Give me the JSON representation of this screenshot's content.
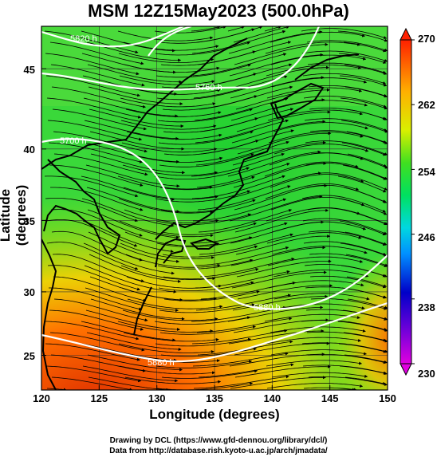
{
  "title": "MSM 12Z15May2023 (500.0hPa)",
  "x_axis": {
    "label": "Longitude (degrees)",
    "range": [
      120,
      150
    ],
    "ticks": [
      "120",
      "125",
      "130",
      "135",
      "140",
      "145",
      "150"
    ]
  },
  "y_axis": {
    "label": "Latitude  (degrees)",
    "range": [
      22.4,
      47.6
    ],
    "ticks": [
      "25",
      "30",
      "35",
      "40",
      "45"
    ]
  },
  "colorbar": {
    "min": 230,
    "max": 270,
    "ticks": [
      "230",
      "238",
      "246",
      "254",
      "262",
      "270"
    ],
    "colors": [
      "#e000e0",
      "#0000c8",
      "#00c8ff",
      "#00e040",
      "#e0f000",
      "#ff2000"
    ]
  },
  "contours": [
    {
      "label": "5820 h"
    },
    {
      "label": "5880 h"
    },
    {
      "label": "5760 h"
    },
    {
      "label": "5700 h"
    },
    {
      "label": "5880 h"
    }
  ],
  "credits": {
    "line1": "Drawing by DCL (https://www.gfd-dennou.org/library/dcl/)",
    "line2": "Data from http://database.rish.kyoto-u.ac.jp/arch/jmadata/"
  }
}
